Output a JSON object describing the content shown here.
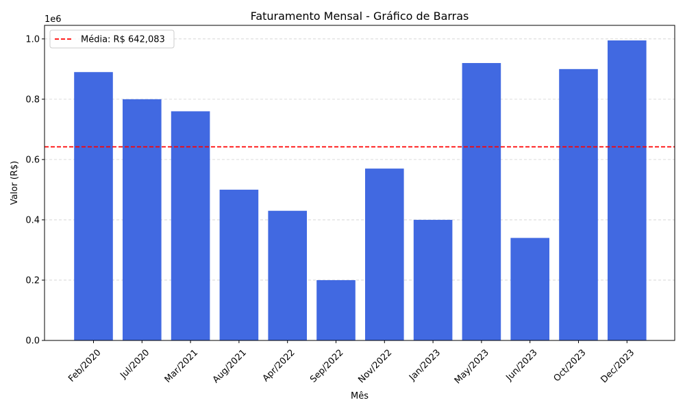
{
  "chart_data": {
    "type": "bar",
    "title": "Faturamento Mensal - Gráfico de Barras",
    "xlabel": "Mês",
    "ylabel": "Valor (R$)",
    "y_offset_label": "1e6",
    "categories": [
      "Feb/2020",
      "Jul/2020",
      "Mar/2021",
      "Aug/2021",
      "Apr/2022",
      "Sep/2022",
      "Nov/2022",
      "Jan/2023",
      "May/2023",
      "Jun/2023",
      "Oct/2023",
      "Dec/2023"
    ],
    "values": [
      890000,
      800000,
      760000,
      500000,
      430000,
      200000,
      570000,
      400000,
      920000,
      340000,
      900000,
      995000
    ],
    "ylim": [
      0,
      1045000
    ],
    "yticks": [
      0,
      200000,
      400000,
      600000,
      800000,
      1000000
    ],
    "ytick_labels": [
      "0.0",
      "0.2",
      "0.4",
      "0.6",
      "0.8",
      "1.0"
    ],
    "bar_color": "#4169e1",
    "reference_line": {
      "value": 642083,
      "label": "Média: R$ 642,083",
      "color": "#ff0000",
      "style": "dashed"
    },
    "grid": {
      "y": true,
      "x": false,
      "style": "dashed"
    },
    "legend_position": "top-left"
  }
}
